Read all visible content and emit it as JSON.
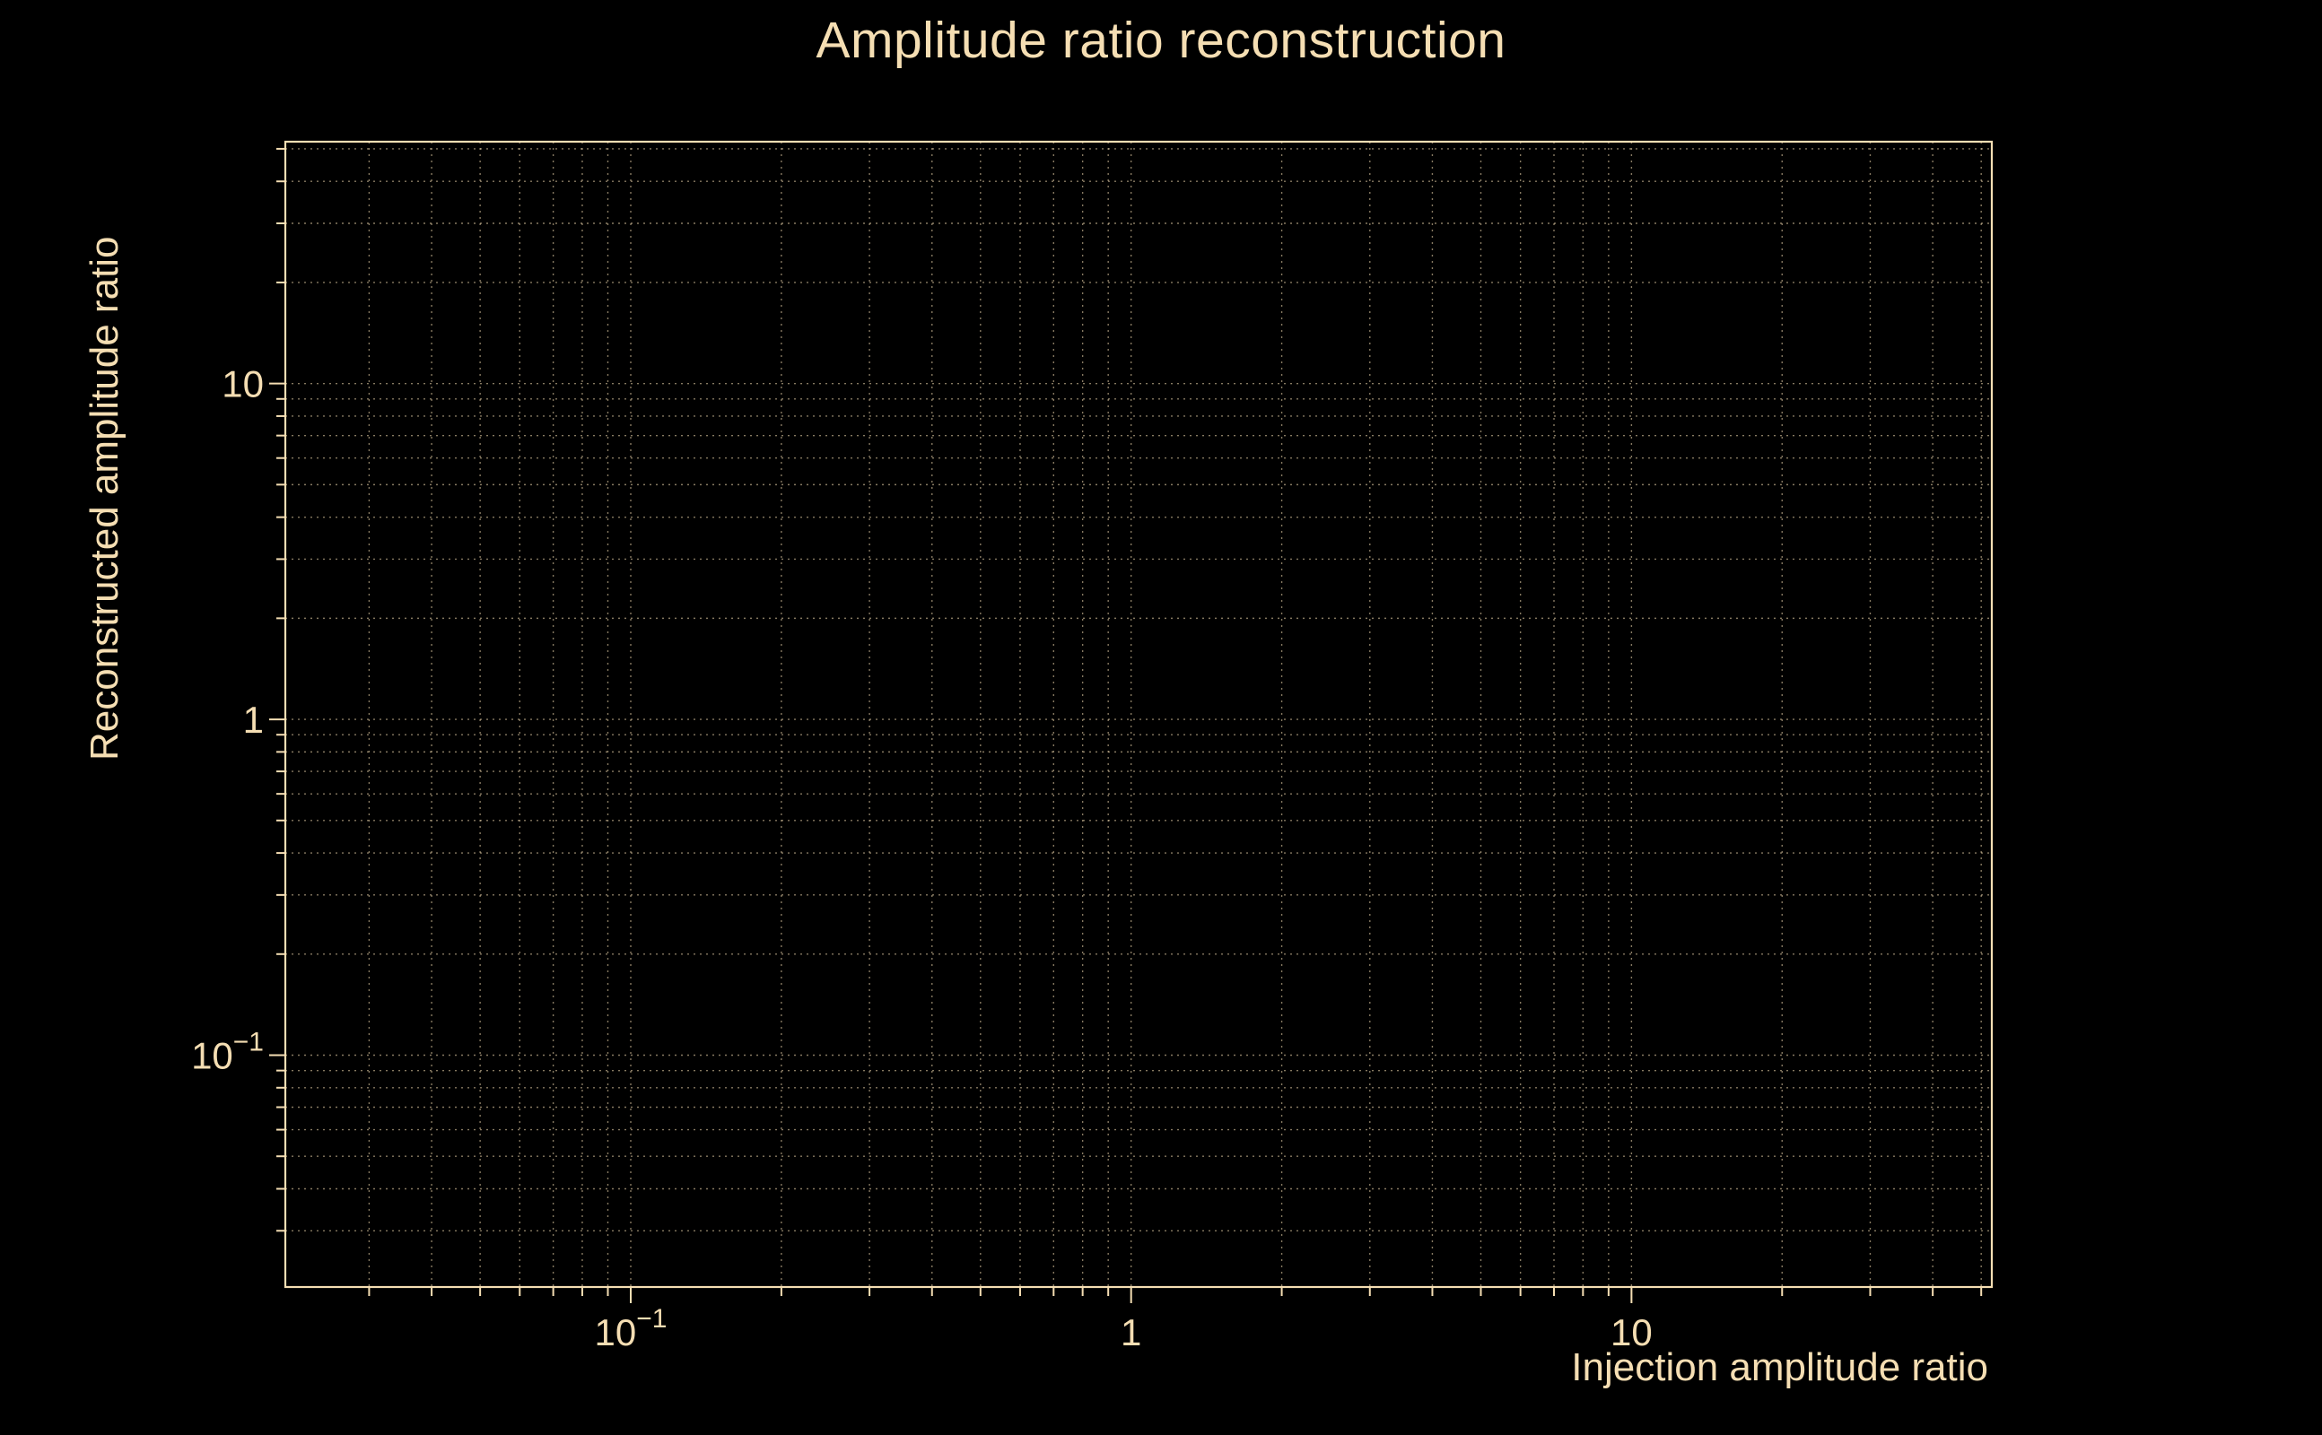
{
  "page": {
    "background_color": "#000000",
    "text_color": "#f5deb3"
  },
  "chart_data": {
    "type": "line",
    "title": "Amplitude ratio reconstruction",
    "xlabel": "Injection amplitude ratio",
    "ylabel": "Reconstructed amplitude ratio",
    "xscale": "log",
    "yscale": "log",
    "xlim": [
      0.0204,
      52.5
    ],
    "ylim": [
      0.0204,
      52.5
    ],
    "grid": true,
    "grid_style": "dotted",
    "minor_gridlines": true,
    "legend": false,
    "x_ticks": [
      {
        "value": 0.1,
        "label": "10",
        "exponent": "−1"
      },
      {
        "value": 1,
        "label": "1",
        "exponent": ""
      },
      {
        "value": 10,
        "label": "10",
        "exponent": ""
      }
    ],
    "y_ticks": [
      {
        "value": 0.1,
        "label": "10",
        "exponent": "−1"
      },
      {
        "value": 1,
        "label": "1",
        "exponent": ""
      },
      {
        "value": 10,
        "label": "10",
        "exponent": ""
      }
    ],
    "series": [],
    "colors": {
      "frame": "#f5deb3",
      "grid": "#f5deb3",
      "text": "#f5deb3",
      "background": "#000000"
    }
  }
}
